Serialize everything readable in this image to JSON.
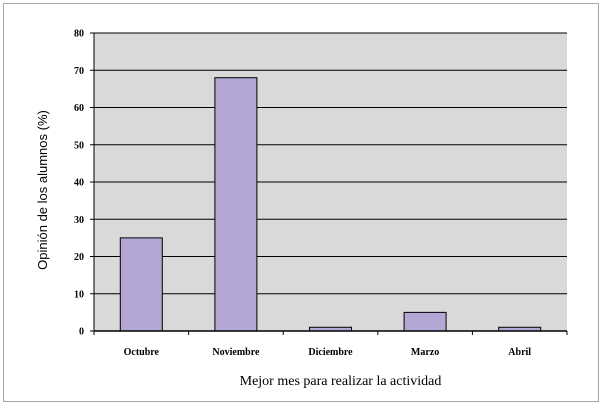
{
  "chart_data": {
    "type": "bar",
    "categories": [
      "Octubre",
      "Noviembre",
      "Diciembre",
      "Marzo",
      "Abril"
    ],
    "values": [
      25,
      68,
      1,
      5,
      1
    ],
    "title": "",
    "xlabel": "Mejor mes para realizar la actividad",
    "ylabel": "Opinión de los alumnos (%)",
    "ylim": [
      0,
      80
    ],
    "yticks": [
      0,
      10,
      20,
      30,
      40,
      50,
      60,
      70,
      80
    ],
    "grid": true,
    "legend": "none",
    "colors": {
      "bar_fill": "#b4a7d6",
      "bar_stroke": "#000000",
      "plot_background": "#d9d9d9",
      "gridline": "#000000"
    }
  }
}
